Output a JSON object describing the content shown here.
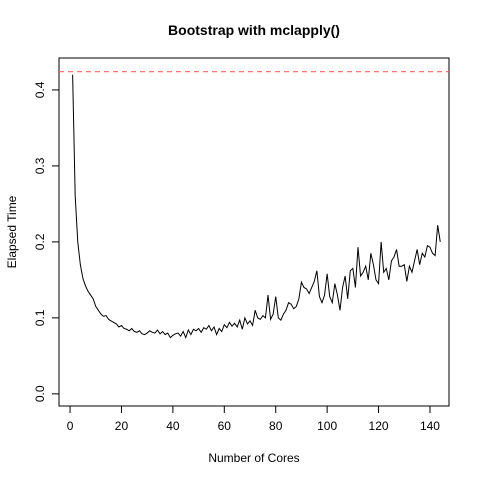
{
  "chart_data": {
    "type": "line",
    "title": "Bootstrap with mclapply()",
    "x_label": "Number of Cores",
    "y_label": "Elapsed Time",
    "x": [
      1,
      2,
      3,
      4,
      5,
      6,
      7,
      8,
      9,
      10,
      11,
      12,
      13,
      14,
      15,
      16,
      17,
      18,
      19,
      20,
      21,
      22,
      23,
      24,
      25,
      26,
      27,
      28,
      29,
      30,
      31,
      32,
      33,
      34,
      35,
      36,
      37,
      38,
      39,
      40,
      41,
      42,
      43,
      44,
      45,
      46,
      47,
      48,
      49,
      50,
      51,
      52,
      53,
      54,
      55,
      56,
      57,
      58,
      59,
      60,
      61,
      62,
      63,
      64,
      65,
      66,
      67,
      68,
      69,
      70,
      71,
      72,
      73,
      74,
      75,
      76,
      77,
      78,
      79,
      80,
      81,
      82,
      83,
      84,
      85,
      86,
      87,
      88,
      89,
      90,
      91,
      92,
      93,
      94,
      95,
      96,
      97,
      98,
      99,
      100,
      101,
      102,
      103,
      104,
      105,
      106,
      107,
      108,
      109,
      110,
      111,
      112,
      113,
      114,
      115,
      116,
      117,
      118,
      119,
      120,
      121,
      122,
      123,
      124,
      125,
      126,
      127,
      128,
      129,
      130,
      131,
      132,
      133,
      134,
      135,
      136,
      137,
      138,
      139,
      140,
      141,
      142,
      143,
      144
    ],
    "series": [
      {
        "color": "#000000",
        "values": [
          0.42,
          0.26,
          0.2,
          0.17,
          0.152,
          0.142,
          0.135,
          0.13,
          0.125,
          0.115,
          0.11,
          0.105,
          0.102,
          0.103,
          0.098,
          0.096,
          0.094,
          0.092,
          0.088,
          0.09,
          0.086,
          0.085,
          0.083,
          0.086,
          0.082,
          0.081,
          0.083,
          0.079,
          0.078,
          0.08,
          0.083,
          0.081,
          0.08,
          0.084,
          0.079,
          0.082,
          0.078,
          0.08,
          0.074,
          0.077,
          0.079,
          0.08,
          0.076,
          0.082,
          0.074,
          0.084,
          0.078,
          0.085,
          0.083,
          0.086,
          0.081,
          0.087,
          0.085,
          0.09,
          0.083,
          0.088,
          0.078,
          0.086,
          0.082,
          0.091,
          0.087,
          0.094,
          0.089,
          0.093,
          0.088,
          0.097,
          0.085,
          0.1,
          0.092,
          0.096,
          0.09,
          0.11,
          0.1,
          0.098,
          0.103,
          0.1,
          0.13,
          0.098,
          0.105,
          0.128,
          0.1,
          0.097,
          0.105,
          0.11,
          0.12,
          0.118,
          0.112,
          0.115,
          0.125,
          0.147,
          0.14,
          0.138,
          0.132,
          0.14,
          0.148,
          0.162,
          0.128,
          0.12,
          0.13,
          0.158,
          0.128,
          0.12,
          0.145,
          0.13,
          0.11,
          0.14,
          0.155,
          0.125,
          0.162,
          0.165,
          0.14,
          0.193,
          0.155,
          0.16,
          0.168,
          0.15,
          0.185,
          0.17,
          0.15,
          0.145,
          0.2,
          0.16,
          0.165,
          0.15,
          0.175,
          0.18,
          0.19,
          0.168,
          0.168,
          0.17,
          0.148,
          0.168,
          0.16,
          0.175,
          0.19,
          0.17,
          0.185,
          0.18,
          0.195,
          0.193,
          0.185,
          0.182,
          0.222,
          0.2
        ]
      }
    ],
    "reference_line": {
      "value": 0.424,
      "color": "#ff6666"
    },
    "xlim": [
      -4.3,
      147.4
    ],
    "ylim": [
      -0.016,
      0.442
    ],
    "xticks": [
      0,
      20,
      40,
      60,
      80,
      100,
      120,
      140
    ],
    "yticks": [
      {
        "value": 0,
        "label": "0.0"
      },
      0.1,
      0.2,
      0.3,
      0.4
    ]
  }
}
